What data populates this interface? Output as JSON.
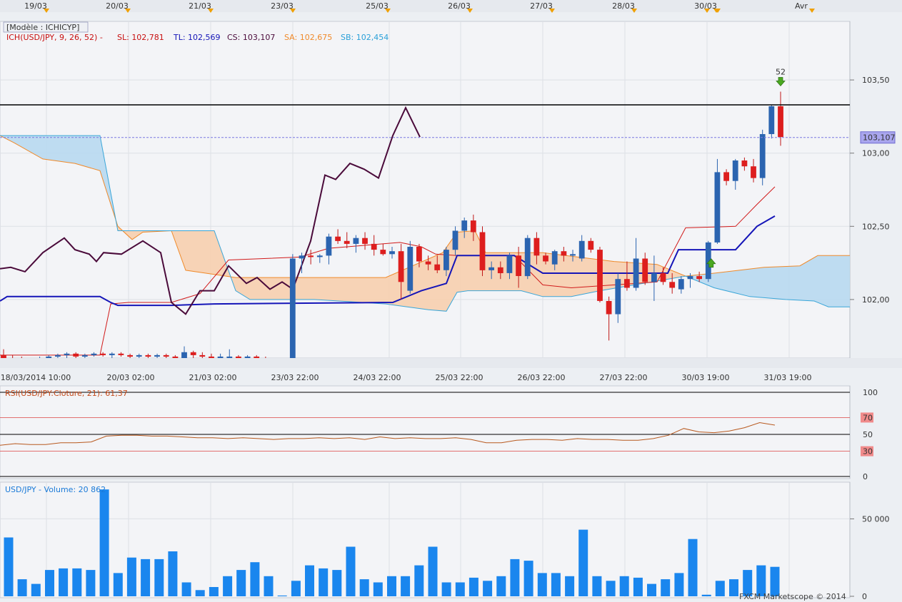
{
  "app": {
    "watermark": "FXCM Marketscope © 2014"
  },
  "top_dates": [
    "19/03",
    "20/03",
    "21/03",
    "23/03",
    "25/03",
    "26/03",
    "27/03",
    "28/03",
    "30/03",
    "Avr"
  ],
  "main": {
    "model_label": "[Modèle : ICHICYP]",
    "legend": {
      "ich": "ICH(USD/JPY, 9, 26, 52) -",
      "sl": "SL: 102,781",
      "tl": "TL: 102,569",
      "cs": "CS: 103,107",
      "sa": "SA: 102,675",
      "sb": "SB: 102,454"
    },
    "price_labels": [
      "103,50",
      "103,00",
      "102,50",
      "102,00"
    ],
    "current_price": "103,107",
    "marker_label": "52",
    "time_labels": [
      "18/03/2014 10:00",
      "20/03 02:00",
      "21/03 02:00",
      "23/03 22:00",
      "24/03 22:00",
      "25/03 22:00",
      "26/03 22:00",
      "27/03 22:00",
      "30/03 19:00",
      "31/03 19:00"
    ]
  },
  "rsi": {
    "label": "RSI(USD/JPY:Cloture, 21): 61,37",
    "levels": [
      "100",
      "70",
      "50",
      "30",
      "0"
    ]
  },
  "volume": {
    "label": "USD/JPY - Volume: 20 862",
    "axis": [
      "50 000",
      "0"
    ]
  },
  "colors": {
    "up": "#2b64b0",
    "down": "#dd1e1e",
    "tenkan": "#d11a1a",
    "kijun": "#1515b8",
    "chikou": "#4a0a3a",
    "cloud_bull": "#f7cfae",
    "cloud_bear": "#b8d9ef",
    "span_a": "#f08a2a",
    "span_b": "#3aa6d8",
    "volume": "#1a86ee"
  },
  "chart_data": {
    "type": "candlestick",
    "price_range": [
      101.6,
      103.9
    ],
    "candles": [
      {
        "o": 101.62,
        "h": 101.66,
        "l": 101.58,
        "c": 101.6
      },
      {
        "o": 101.6,
        "h": 101.62,
        "l": 101.58,
        "c": 101.59
      },
      {
        "o": 101.59,
        "h": 101.61,
        "l": 101.57,
        "c": 101.58
      },
      {
        "o": 101.58,
        "h": 101.6,
        "l": 101.57,
        "c": 101.59
      },
      {
        "o": 101.59,
        "h": 101.61,
        "l": 101.58,
        "c": 101.6
      },
      {
        "o": 101.6,
        "h": 101.62,
        "l": 101.58,
        "c": 101.61
      },
      {
        "o": 101.61,
        "h": 101.63,
        "l": 101.59,
        "c": 101.62
      },
      {
        "o": 101.62,
        "h": 101.64,
        "l": 101.6,
        "c": 101.63
      },
      {
        "o": 101.63,
        "h": 101.64,
        "l": 101.6,
        "c": 101.61
      },
      {
        "o": 101.61,
        "h": 101.63,
        "l": 101.59,
        "c": 101.62
      },
      {
        "o": 101.62,
        "h": 101.64,
        "l": 101.61,
        "c": 101.63
      },
      {
        "o": 101.63,
        "h": 101.64,
        "l": 101.61,
        "c": 101.62
      },
      {
        "o": 101.62,
        "h": 101.64,
        "l": 101.6,
        "c": 101.63
      },
      {
        "o": 101.63,
        "h": 101.64,
        "l": 101.61,
        "c": 101.62
      },
      {
        "o": 101.62,
        "h": 101.63,
        "l": 101.6,
        "c": 101.61
      },
      {
        "o": 101.61,
        "h": 101.63,
        "l": 101.6,
        "c": 101.62
      },
      {
        "o": 101.62,
        "h": 101.63,
        "l": 101.6,
        "c": 101.61
      },
      {
        "o": 101.61,
        "h": 101.63,
        "l": 101.6,
        "c": 101.62
      },
      {
        "o": 101.62,
        "h": 101.63,
        "l": 101.6,
        "c": 101.61
      },
      {
        "o": 101.61,
        "h": 101.62,
        "l": 101.59,
        "c": 101.6
      },
      {
        "o": 101.6,
        "h": 101.68,
        "l": 101.58,
        "c": 101.64
      },
      {
        "o": 101.64,
        "h": 101.65,
        "l": 101.59,
        "c": 101.62
      },
      {
        "o": 101.62,
        "h": 101.64,
        "l": 101.59,
        "c": 101.61
      },
      {
        "o": 101.61,
        "h": 101.63,
        "l": 101.59,
        "c": 101.6
      },
      {
        "o": 101.6,
        "h": 101.63,
        "l": 101.58,
        "c": 101.61
      },
      {
        "o": 101.59,
        "h": 101.66,
        "l": 101.58,
        "c": 101.61
      },
      {
        "o": 101.61,
        "h": 101.62,
        "l": 101.58,
        "c": 101.6
      },
      {
        "o": 101.6,
        "h": 101.62,
        "l": 101.58,
        "c": 101.61
      },
      {
        "o": 101.61,
        "h": 101.62,
        "l": 101.58,
        "c": 101.59
      },
      {
        "o": 101.59,
        "h": 101.61,
        "l": 101.57,
        "c": 101.58
      },
      {
        "o": 101.58,
        "h": 101.6,
        "l": 101.56,
        "c": 101.59
      },
      {
        "o": 101.59,
        "h": 101.6,
        "l": 101.57,
        "c": 101.58
      },
      {
        "o": 101.58,
        "h": 102.31,
        "l": 101.56,
        "c": 102.28
      },
      {
        "o": 102.28,
        "h": 102.32,
        "l": 102.18,
        "c": 102.3
      },
      {
        "o": 102.3,
        "h": 102.34,
        "l": 102.24,
        "c": 102.29
      },
      {
        "o": 102.29,
        "h": 102.31,
        "l": 102.25,
        "c": 102.3
      },
      {
        "o": 102.3,
        "h": 102.45,
        "l": 102.24,
        "c": 102.43
      },
      {
        "o": 102.43,
        "h": 102.48,
        "l": 102.38,
        "c": 102.4
      },
      {
        "o": 102.4,
        "h": 102.46,
        "l": 102.35,
        "c": 102.38
      },
      {
        "o": 102.38,
        "h": 102.44,
        "l": 102.32,
        "c": 102.42
      },
      {
        "o": 102.42,
        "h": 102.46,
        "l": 102.34,
        "c": 102.38
      },
      {
        "o": 102.38,
        "h": 102.44,
        "l": 102.3,
        "c": 102.34
      },
      {
        "o": 102.34,
        "h": 102.38,
        "l": 102.3,
        "c": 102.31
      },
      {
        "o": 102.31,
        "h": 102.36,
        "l": 102.28,
        "c": 102.33
      },
      {
        "o": 102.33,
        "h": 102.38,
        "l": 102.0,
        "c": 102.12
      },
      {
        "o": 102.06,
        "h": 102.4,
        "l": 102.04,
        "c": 102.36
      },
      {
        "o": 102.36,
        "h": 102.38,
        "l": 102.22,
        "c": 102.26
      },
      {
        "o": 102.26,
        "h": 102.3,
        "l": 102.2,
        "c": 102.24
      },
      {
        "o": 102.24,
        "h": 102.3,
        "l": 102.18,
        "c": 102.2
      },
      {
        "o": 102.2,
        "h": 102.36,
        "l": 102.16,
        "c": 102.34
      },
      {
        "o": 102.34,
        "h": 102.5,
        "l": 102.3,
        "c": 102.47
      },
      {
        "o": 102.47,
        "h": 102.56,
        "l": 102.42,
        "c": 102.54
      },
      {
        "o": 102.54,
        "h": 102.58,
        "l": 102.4,
        "c": 102.46
      },
      {
        "o": 102.46,
        "h": 102.5,
        "l": 102.16,
        "c": 102.2
      },
      {
        "o": 102.2,
        "h": 102.26,
        "l": 102.14,
        "c": 102.22
      },
      {
        "o": 102.22,
        "h": 102.26,
        "l": 102.14,
        "c": 102.18
      },
      {
        "o": 102.18,
        "h": 102.32,
        "l": 102.14,
        "c": 102.3
      },
      {
        "o": 102.3,
        "h": 102.36,
        "l": 102.08,
        "c": 102.16
      },
      {
        "o": 102.16,
        "h": 102.44,
        "l": 102.14,
        "c": 102.42
      },
      {
        "o": 102.42,
        "h": 102.46,
        "l": 102.24,
        "c": 102.3
      },
      {
        "o": 102.3,
        "h": 102.32,
        "l": 102.24,
        "c": 102.26
      },
      {
        "o": 102.24,
        "h": 102.34,
        "l": 102.2,
        "c": 102.33
      },
      {
        "o": 102.33,
        "h": 102.36,
        "l": 102.26,
        "c": 102.3
      },
      {
        "o": 102.3,
        "h": 102.34,
        "l": 102.26,
        "c": 102.31
      },
      {
        "o": 102.28,
        "h": 102.44,
        "l": 102.26,
        "c": 102.4
      },
      {
        "o": 102.4,
        "h": 102.42,
        "l": 102.32,
        "c": 102.34
      },
      {
        "o": 102.34,
        "h": 102.36,
        "l": 101.98,
        "c": 101.99
      },
      {
        "o": 101.99,
        "h": 102.02,
        "l": 101.72,
        "c": 101.9
      },
      {
        "o": 101.9,
        "h": 102.18,
        "l": 101.84,
        "c": 102.14
      },
      {
        "o": 102.14,
        "h": 102.26,
        "l": 102.06,
        "c": 102.08
      },
      {
        "o": 102.08,
        "h": 102.42,
        "l": 102.06,
        "c": 102.28
      },
      {
        "o": 102.28,
        "h": 102.32,
        "l": 102.1,
        "c": 102.12
      },
      {
        "o": 102.12,
        "h": 102.3,
        "l": 101.99,
        "c": 102.18
      },
      {
        "o": 102.18,
        "h": 102.22,
        "l": 102.1,
        "c": 102.12
      },
      {
        "o": 102.12,
        "h": 102.18,
        "l": 102.04,
        "c": 102.08
      },
      {
        "o": 102.07,
        "h": 102.16,
        "l": 102.04,
        "c": 102.14
      },
      {
        "o": 102.14,
        "h": 102.18,
        "l": 102.08,
        "c": 102.16
      },
      {
        "o": 102.16,
        "h": 102.19,
        "l": 102.12,
        "c": 102.14
      },
      {
        "o": 102.14,
        "h": 102.4,
        "l": 102.12,
        "c": 102.39
      },
      {
        "o": 102.39,
        "h": 102.96,
        "l": 102.38,
        "c": 102.87
      },
      {
        "o": 102.87,
        "h": 102.89,
        "l": 102.78,
        "c": 102.81
      },
      {
        "o": 102.81,
        "h": 102.96,
        "l": 102.75,
        "c": 102.95
      },
      {
        "o": 102.95,
        "h": 102.97,
        "l": 102.88,
        "c": 102.91
      },
      {
        "o": 102.91,
        "h": 102.96,
        "l": 102.8,
        "c": 102.83
      },
      {
        "o": 102.83,
        "h": 103.16,
        "l": 102.78,
        "c": 103.13
      },
      {
        "o": 103.13,
        "h": 103.33,
        "l": 103.1,
        "c": 103.32
      },
      {
        "o": 103.32,
        "h": 103.42,
        "l": 103.05,
        "c": 103.11
      }
    ],
    "volume_max": 70000,
    "volume": [
      38000,
      11000,
      8000,
      17000,
      18000,
      18000,
      17000,
      69000,
      15000,
      25000,
      24000,
      24000,
      29000,
      9000,
      4000,
      6000,
      13000,
      17000,
      22000,
      13000,
      500,
      10000,
      20000,
      18000,
      17000,
      32000,
      11000,
      9000,
      13000,
      13000,
      20000,
      32000,
      9000,
      9000,
      12000,
      10000,
      13000,
      24000,
      23000,
      15000,
      15000,
      13000,
      43000,
      13000,
      10000,
      13000,
      12000,
      8000,
      11000,
      15000,
      37000,
      1000,
      10000,
      11000,
      17000,
      20000,
      19000
    ],
    "rsi": [
      37,
      39,
      38,
      38,
      40,
      40,
      41,
      48,
      49,
      49,
      48,
      48,
      47,
      46,
      46,
      45,
      46,
      45,
      44,
      45,
      45,
      46,
      45,
      46,
      44,
      47,
      45,
      46,
      45,
      45,
      46,
      44,
      40,
      40,
      43,
      44,
      44,
      43,
      45,
      44,
      44,
      43,
      43,
      45,
      49,
      57,
      53,
      52,
      54,
      58,
      64,
      61
    ]
  }
}
